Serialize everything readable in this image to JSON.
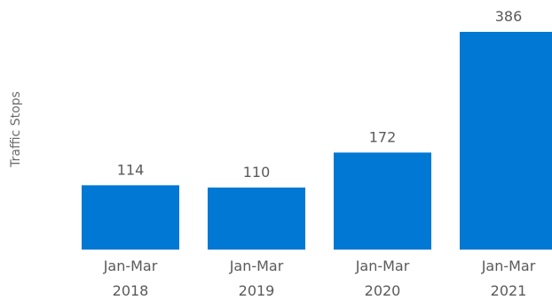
{
  "chart_data": {
    "type": "bar",
    "title": "",
    "xlabel": "",
    "ylabel": "Traffic Stops",
    "categories": [
      [
        "Jan-Mar",
        "2018"
      ],
      [
        "Jan-Mar",
        "2019"
      ],
      [
        "Jan-Mar",
        "2020"
      ],
      [
        "Jan-Mar",
        "2021"
      ]
    ],
    "values": [
      114,
      110,
      172,
      386
    ],
    "ylim": [
      0,
      386
    ],
    "grid": false,
    "legend": "none",
    "bar_color": "#0078d4"
  }
}
